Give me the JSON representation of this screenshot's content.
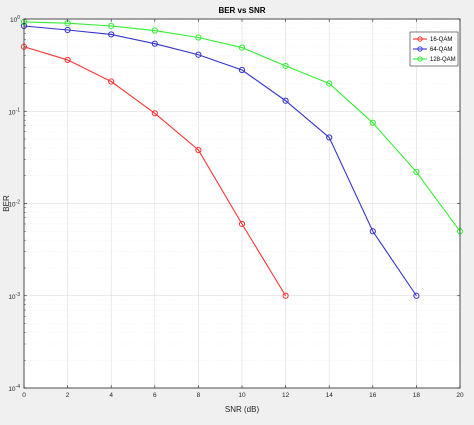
{
  "chart_data": {
    "type": "line",
    "title": "BER vs SNR",
    "xlabel": "SNR (dB)",
    "ylabel": "BER",
    "x_scale": "linear",
    "y_scale": "log",
    "xlim": [
      0,
      20
    ],
    "ylim": [
      0.0001,
      1
    ],
    "grid": true,
    "legend_position": "top-right",
    "x_ticks": [
      0,
      2,
      4,
      6,
      8,
      10,
      12,
      14,
      16,
      18,
      20
    ],
    "y_ticks": [
      {
        "value": 1,
        "base": "10",
        "exp": "0"
      },
      {
        "value": 0.1,
        "base": "10",
        "exp": "-1"
      },
      {
        "value": 0.01,
        "base": "10",
        "exp": "-2"
      },
      {
        "value": 0.001,
        "base": "10",
        "exp": "-3"
      },
      {
        "value": 0.0001,
        "base": "10",
        "exp": "-4"
      }
    ],
    "series": [
      {
        "name": "16-QAM",
        "color": "#ff3333",
        "x": [
          0,
          2,
          4,
          6,
          8,
          10,
          12
        ],
        "y": [
          0.5,
          0.36,
          0.21,
          0.095,
          0.038,
          0.006,
          0.001
        ]
      },
      {
        "name": "64-QAM",
        "color": "#3333cc",
        "x": [
          0,
          2,
          4,
          6,
          8,
          10,
          12,
          14,
          16,
          18
        ],
        "y": [
          0.84,
          0.76,
          0.68,
          0.54,
          0.41,
          0.28,
          0.13,
          0.052,
          0.005,
          0.001
        ]
      },
      {
        "name": "128-QAM",
        "color": "#33ee33",
        "x": [
          0,
          2,
          4,
          6,
          8,
          10,
          12,
          14,
          16,
          18,
          20
        ],
        "y": [
          0.93,
          0.9,
          0.84,
          0.75,
          0.63,
          0.49,
          0.31,
          0.2,
          0.075,
          0.022,
          0.005
        ]
      }
    ]
  }
}
